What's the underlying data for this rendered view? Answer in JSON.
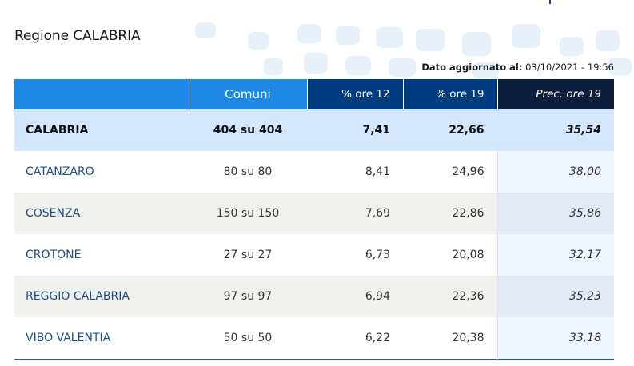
{
  "region": {
    "title": "Regione CALABRIA"
  },
  "updated": {
    "label": "Dato aggiornato al:",
    "value": "03/10/2021 - 19:56"
  },
  "table": {
    "headers": {
      "name": "",
      "comuni": "Comuni",
      "ore12": "% ore 12",
      "ore19": "% ore 19",
      "prec19": "Prec. ore 19"
    },
    "total": {
      "name": "CALABRIA",
      "comuni": "404 su 404",
      "ore12": "7,41",
      "ore19": "22,66",
      "prec19": "35,54"
    },
    "rows": [
      {
        "name": "CATANZARO",
        "comuni": "80 su 80",
        "ore12": "8,41",
        "ore19": "24,96",
        "prec19": "38,00"
      },
      {
        "name": "COSENZA",
        "comuni": "150 su 150",
        "ore12": "7,69",
        "ore19": "22,86",
        "prec19": "35,86"
      },
      {
        "name": "CROTONE",
        "comuni": "27 su 27",
        "ore12": "6,73",
        "ore19": "20,08",
        "prec19": "32,17"
      },
      {
        "name": "REGGIO CALABRIA",
        "comuni": "97 su 97",
        "ore12": "6,94",
        "ore19": "22,36",
        "prec19": "35,23"
      },
      {
        "name": "VIBO VALENTIA",
        "comuni": "50 su 50",
        "ore12": "6,22",
        "ore19": "20,38",
        "prec19": "33,18"
      }
    ]
  },
  "colors": {
    "header_light": "#1e88e5",
    "header_dark": "#003c80",
    "header_darkest": "#0e1f3d",
    "total_row": "#d3e6fb",
    "name_text": "#1d4d86"
  }
}
